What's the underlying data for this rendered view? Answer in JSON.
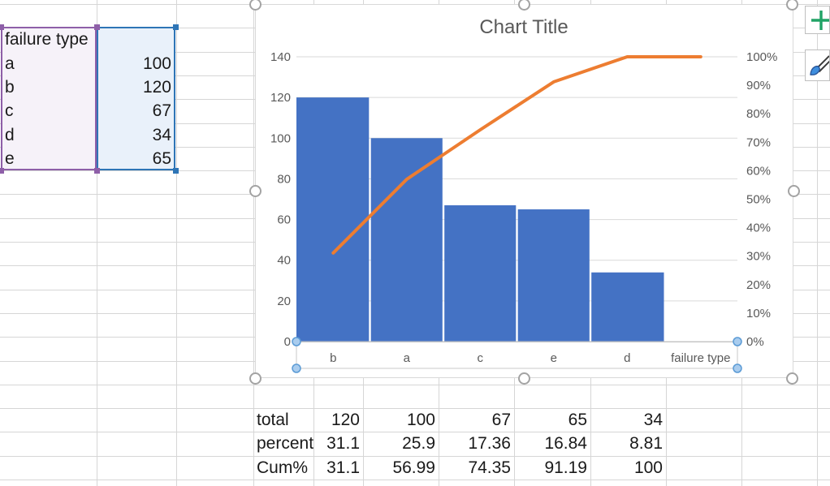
{
  "source_table": {
    "header_label": "failure type",
    "rows": [
      {
        "label": "a",
        "value": "100"
      },
      {
        "label": "b",
        "value": "120"
      },
      {
        "label": "c",
        "value": "67"
      },
      {
        "label": "d",
        "value": "34"
      },
      {
        "label": "e",
        "value": "65"
      }
    ]
  },
  "summary_table": {
    "rows": [
      {
        "label": "total",
        "values": [
          "120",
          "100",
          "67",
          "65",
          "34"
        ]
      },
      {
        "label": "percent",
        "values": [
          "31.1",
          "25.9",
          "17.36",
          "16.84",
          "8.81"
        ]
      },
      {
        "label": "Cum%",
        "values": [
          "31.1",
          "56.99",
          "74.35",
          "91.19",
          "100"
        ]
      }
    ]
  },
  "chart": {
    "title": "Chart Title",
    "left_axis_ticks": [
      "0",
      "20",
      "40",
      "60",
      "80",
      "100",
      "120",
      "140"
    ],
    "right_axis_ticks": [
      "0%",
      "10%",
      "20%",
      "30%",
      "40%",
      "50%",
      "60%",
      "70%",
      "80%",
      "90%",
      "100%"
    ],
    "x_labels": [
      "b",
      "a",
      "c",
      "e",
      "d",
      "failure type"
    ],
    "x_axis_title": "failure type"
  },
  "chart_data": {
    "type": "bar",
    "title": "Chart Title",
    "categories": [
      "b",
      "a",
      "c",
      "e",
      "d"
    ],
    "series": [
      {
        "name": "total",
        "type": "bar",
        "axis": "left",
        "color": "#4472C4",
        "values": [
          120,
          100,
          67,
          65,
          34
        ]
      },
      {
        "name": "Cum%",
        "type": "line",
        "axis": "right",
        "color": "#ED7D31",
        "values": [
          31.1,
          56.99,
          74.35,
          91.19,
          100
        ],
        "line_extends_to_extra_slot": true
      }
    ],
    "xlabel": "failure type",
    "ylim_left": [
      0,
      140
    ],
    "ylim_right": [
      0,
      100
    ],
    "left_tick_step": 20,
    "right_tick_step": 10,
    "grid": "horizontal",
    "legend": "none"
  },
  "chart_buttons": [
    {
      "name": "chart-elements",
      "icon": "plus-icon"
    },
    {
      "name": "chart-styles",
      "icon": "paintbrush-icon"
    }
  ],
  "colors": {
    "bar": "#4472C4",
    "line": "#ED7D31",
    "gridline": "#d9d9d9",
    "axis_text": "#595959",
    "axis_line": "#bfbfbf",
    "range_purple": "#8e5fa8",
    "range_blue": "#2e75b6",
    "handle_gray": "#a3a3a3",
    "handle_blue_fill": "#a9ccee",
    "handle_blue_stroke": "#5b9bd5",
    "plus_green": "#21A366",
    "brush_blue": "#3e8ede"
  }
}
